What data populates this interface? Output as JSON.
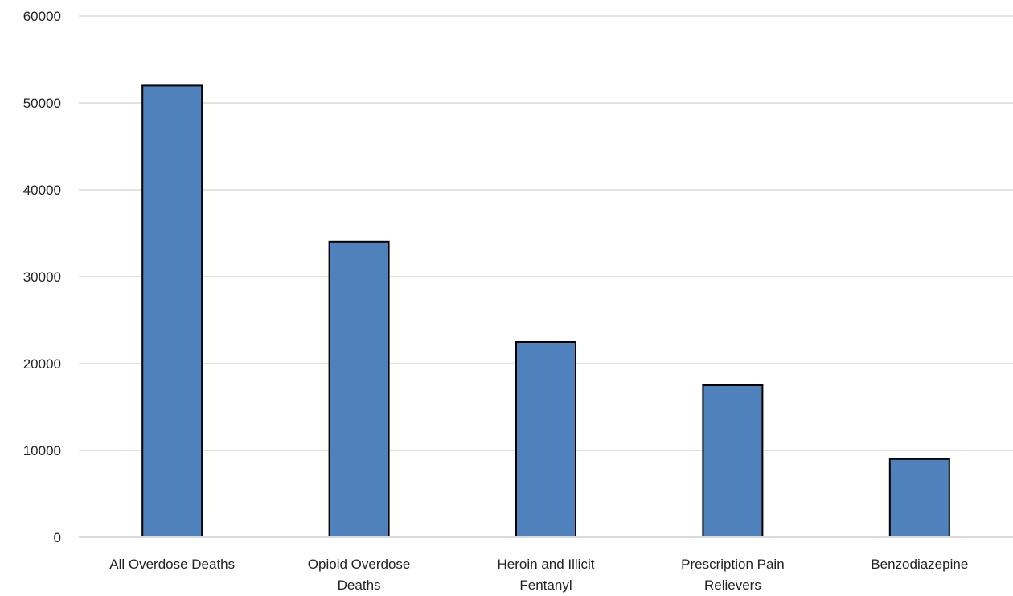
{
  "chart_data": {
    "type": "bar",
    "title": "",
    "xlabel": "",
    "ylabel": "",
    "categories": [
      [
        "All Overdose Deaths"
      ],
      [
        "Opioid Overdose",
        "Deaths"
      ],
      [
        "Heroin and Illicit",
        "Fentanyl"
      ],
      [
        "Prescription Pain",
        "Relievers"
      ],
      [
        "Benzodiazepine"
      ]
    ],
    "values": [
      52000,
      34000,
      22500,
      17500,
      9000
    ],
    "ylim": [
      0,
      60000
    ],
    "yticks": [
      "0",
      "10000",
      "20000",
      "30000",
      "40000",
      "50000",
      "60000"
    ],
    "grid": true,
    "legend": "none",
    "colors": {
      "bar": "#4f81bd",
      "bar_stroke": "#000000",
      "grid": "#d9d9d9"
    }
  }
}
